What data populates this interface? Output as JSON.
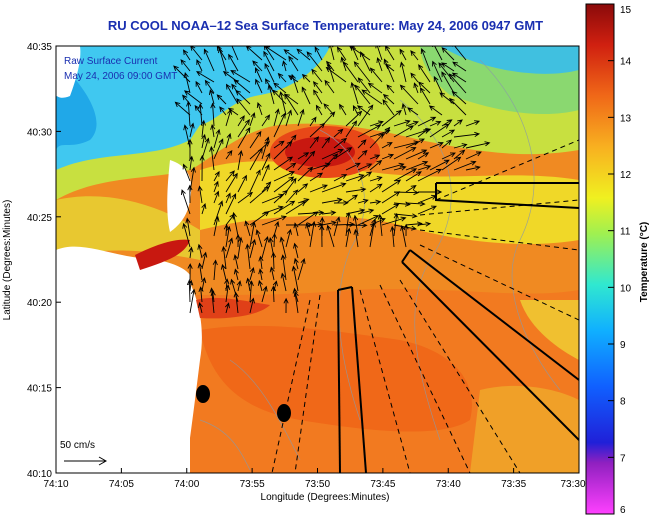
{
  "title": "RU COOL  NOAA–12  Sea Surface Temperature:  May 24, 2006 0947 GMT",
  "inset": {
    "line1": "Raw Surface Current",
    "line2": "May 24, 2006 09:00 GMT"
  },
  "axes": {
    "xlabel": "Longitude (Degrees:Minutes)",
    "ylabel": "Latitude (Degrees:Minutes)",
    "x_ticks": [
      "74:10",
      "74:05",
      "74:00",
      "73:55",
      "73:50",
      "73:45",
      "73:40",
      "73:35",
      "73:30"
    ],
    "y_ticks": [
      "40:35",
      "40:30",
      "40:25",
      "40:20",
      "40:15",
      "40:10"
    ]
  },
  "scale": {
    "label": "50 cm/s"
  },
  "colorbar": {
    "label": "Temperature (°C)",
    "ticks": [
      "15",
      "14",
      "13",
      "12",
      "11",
      "10",
      "9",
      "8",
      "7",
      "6"
    ],
    "min": 6,
    "max": 15
  },
  "colors": {
    "title": "#1a2fb0",
    "land": "#ffffff",
    "warm": "#f07a1e",
    "hot": "#d21a10",
    "cool": "#22c8f0"
  }
}
